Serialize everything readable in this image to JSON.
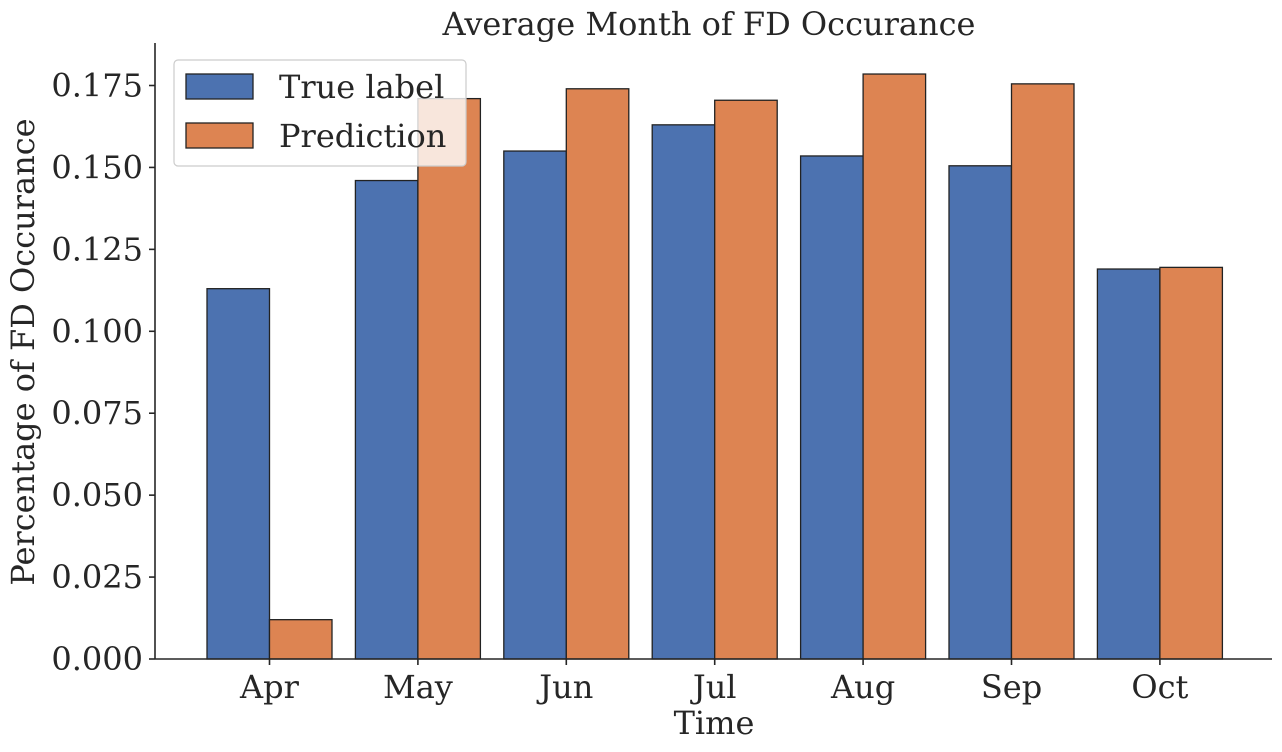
{
  "chart_data": {
    "type": "bar",
    "title": "Average Month of FD Occurance",
    "xlabel": "Time",
    "ylabel": "Percentage of FD Occurance",
    "categories": [
      "Apr",
      "May",
      "Jun",
      "Jul",
      "Aug",
      "Sep",
      "Oct"
    ],
    "series": [
      {
        "name": "True label",
        "color": "#4c72b0",
        "values": [
          0.113,
          0.146,
          0.155,
          0.163,
          0.1535,
          0.1505,
          0.119
        ]
      },
      {
        "name": "Prediction",
        "color": "#dd8452",
        "values": [
          0.012,
          0.171,
          0.174,
          0.1705,
          0.1785,
          0.1755,
          0.1195
        ]
      }
    ],
    "ylim": [
      0,
      0.1875
    ],
    "yticks": [
      "0.000",
      "0.025",
      "0.050",
      "0.075",
      "0.100",
      "0.125",
      "0.150",
      "0.175"
    ],
    "legend_position": "top-left",
    "grid": false
  }
}
